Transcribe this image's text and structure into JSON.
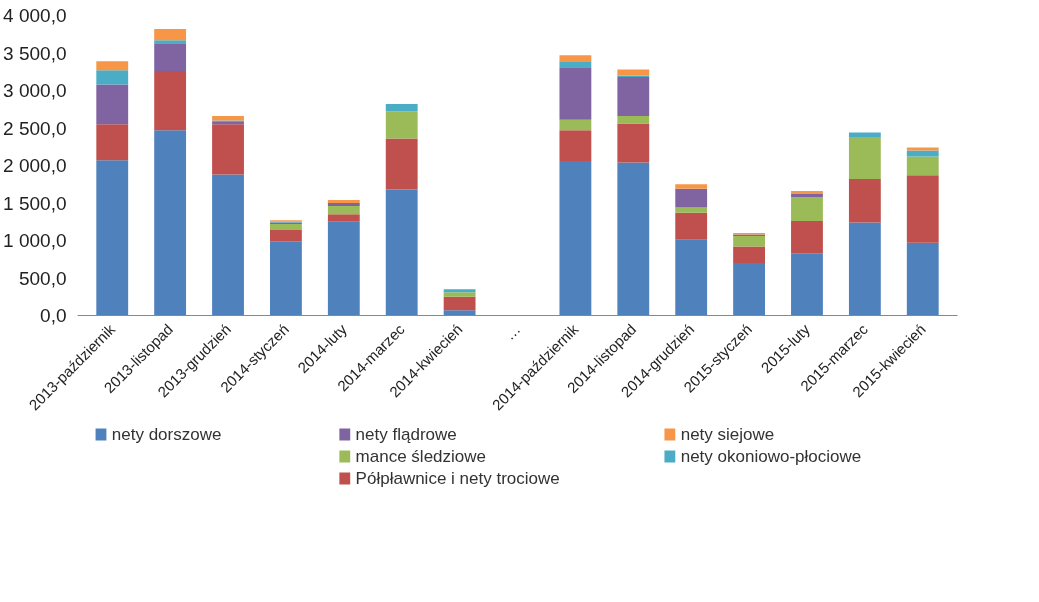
{
  "chart_data": {
    "type": "bar",
    "stacked": true,
    "legend": "bottom",
    "grid": false,
    "categories": [
      "2013-październik",
      "2013-listopad",
      "2013-grudzień",
      "2014-styczeń",
      "2014-luty",
      "2014-marzec",
      "2014-kwiecień",
      "…",
      "2014-październik",
      "2014-listopad",
      "2014-grudzień",
      "2015-styczeń",
      "2015-luty",
      "2015-marzec",
      "2015-kwiecień"
    ],
    "ylim": [
      0,
      4000
    ],
    "yticks": [
      {
        "value": 0,
        "label": "0,0"
      },
      {
        "value": 500,
        "label": "500,0"
      },
      {
        "value": 1000,
        "label": "1 000,0"
      },
      {
        "value": 1500,
        "label": "1 500,0"
      },
      {
        "value": 2000,
        "label": "2 000,0"
      },
      {
        "value": 2500,
        "label": "2 500,0"
      },
      {
        "value": 3000,
        "label": "3 000,0"
      },
      {
        "value": 3500,
        "label": "3 500,0"
      },
      {
        "value": 4000,
        "label": "4 000,0"
      }
    ],
    "series": [
      {
        "name": "nety dorszowe",
        "color": "#4f81bd",
        "values": [
          2070,
          2470,
          1880,
          990,
          1250,
          1680,
          70,
          null,
          2060,
          2040,
          1010,
          700,
          830,
          1240,
          970
        ]
      },
      {
        "name": "Półpławnice i nety trociowe",
        "color": "#c0504d",
        "values": [
          480,
          790,
          670,
          150,
          100,
          680,
          180,
          null,
          410,
          520,
          360,
          220,
          430,
          580,
          900
        ]
      },
      {
        "name": "mance śledziowe",
        "color": "#9bbb59",
        "values": [
          0,
          0,
          0,
          80,
          110,
          360,
          60,
          null,
          140,
          100,
          70,
          140,
          320,
          560,
          250
        ]
      },
      {
        "name": "nety flądrowe",
        "color": "#8064a2",
        "values": [
          530,
          370,
          30,
          20,
          40,
          0,
          0,
          null,
          700,
          520,
          250,
          20,
          40,
          0,
          0
        ]
      },
      {
        "name": "nety okoniowo-płociowe",
        "color": "#4bacc6",
        "values": [
          190,
          40,
          20,
          10,
          0,
          100,
          40,
          null,
          80,
          20,
          0,
          0,
          0,
          60,
          80
        ]
      },
      {
        "name": "nety siejowe",
        "color": "#f79646",
        "values": [
          120,
          150,
          60,
          20,
          40,
          0,
          0,
          null,
          80,
          80,
          60,
          20,
          40,
          0,
          40
        ]
      }
    ]
  }
}
